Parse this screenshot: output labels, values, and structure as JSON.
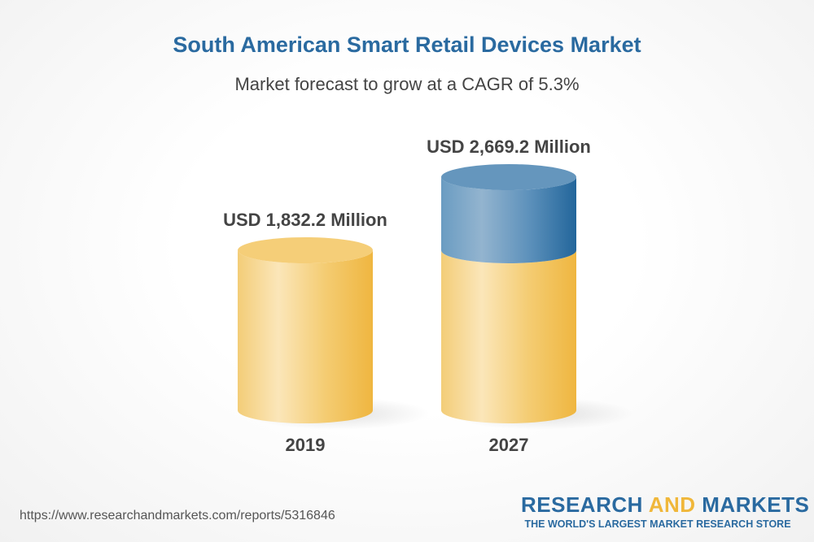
{
  "header": {
    "title": "South American Smart Retail Devices Market",
    "subtitle": "Market forecast to grow at a CAGR of 5.3%"
  },
  "chart_data": {
    "type": "bar",
    "style": "3d-cylinder",
    "categories": [
      "2019",
      "2027"
    ],
    "values": [
      1832.2,
      2669.2
    ],
    "data_labels": [
      "USD 1,832.2 Million",
      "USD 2,669.2 Million"
    ],
    "unit": "USD Million",
    "colors": {
      "base": "#f2c262",
      "growth": "#3a78a8"
    }
  },
  "footer": {
    "url": "https://www.researchandmarkets.com/reports/5316846",
    "logo": {
      "word1": "RESEARCH",
      "word2": "AND",
      "word3": "MARKETS",
      "tagline": "THE WORLD'S LARGEST MARKET RESEARCH STORE"
    }
  }
}
